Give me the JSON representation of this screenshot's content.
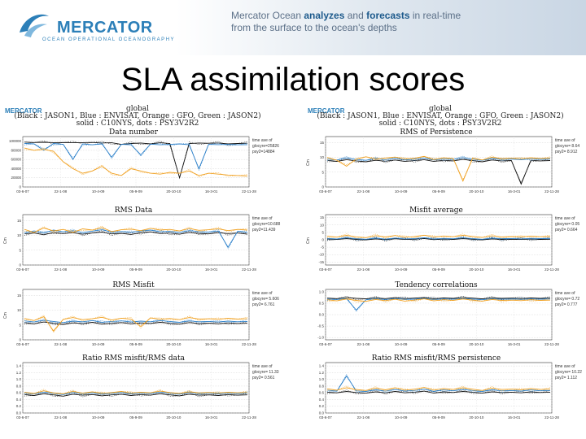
{
  "header": {
    "logo_text": "MERCATOR",
    "logo_subtext": "OCEAN OPERATIONAL OCEANOGRAPHY",
    "tagline_part1": "Mercator Ocean ",
    "tagline_hl1": "analyzes",
    "tagline_and": " and ",
    "tagline_hl2": "forecasts",
    "tagline_part2": " in real-time",
    "tagline_line2": "from the surface to the ocean's depths"
  },
  "slide_title": "SLA assimilation scores",
  "colors": {
    "JASON1": "#111111",
    "ENVISAT": "#2a7fc9",
    "GFO": "#f0a020",
    "JASON2": "#2aa02a",
    "brand": "#2c7fb8"
  },
  "figures": [
    {
      "logo": "MERCATOR",
      "region": "global",
      "legend": "(Black : JASON1, Blue : ENVISAT, Orange : GFO, Green : JASON2)",
      "styles": "solid : C10NYS, dots : PSY3V2R2",
      "panels": [
        {
          "title": "Data number",
          "ylabel": "",
          "stats": [
            "time ave of",
            "glocyre=25826",
            "psy2=14884"
          ]
        },
        {
          "title": "RMS Data",
          "ylabel": "Cm",
          "stats": [
            "time ave of",
            "glocyre=10.688",
            "psy2=11.439"
          ]
        },
        {
          "title": "RMS Misfit",
          "ylabel": "Cm",
          "stats": [
            "time ave of",
            "glocyre= 5.606",
            "psy2= 6.761"
          ]
        },
        {
          "title": "Ratio RMS misfit/RMS data",
          "ylabel": "",
          "stats": [
            "time ave of",
            "glocyre= 11.33",
            "psy2= 0.561"
          ]
        }
      ]
    },
    {
      "logo": "MERCATOR",
      "region": "global",
      "legend": "(Black : JASON1, Blue : ENVISAT, Orange : GFO, Green : JASON2)",
      "styles": "solid : C10NYS, dots : PSY3V2R2",
      "panels": [
        {
          "title": "RMS of Persistence",
          "ylabel": "Cm",
          "stats": [
            "time ave of",
            "glocyre= 8.64",
            "psy2= 8.912"
          ]
        },
        {
          "title": "Misfit average",
          "ylabel": "Cm",
          "stats": [
            "time ave of",
            "glocyre= 0.05",
            "psy2= 0.664"
          ]
        },
        {
          "title": "Tendency correlations",
          "ylabel": "",
          "stats": [
            "time ave of",
            "glocyre= 0.72",
            "psy2= 0.777"
          ]
        },
        {
          "title": "Ratio RMS misfit/RMS persistence",
          "ylabel": "",
          "stats": [
            "time ave of",
            "glocyre= 10.22",
            "psy2= 1.112"
          ]
        }
      ]
    }
  ],
  "chart_data": [
    {
      "type": "line",
      "title": "Data number",
      "x_ticks": [
        "03-6-07",
        "22-1-08",
        "10-4-09",
        "05-9-09",
        "20-10-10",
        "16-3-01",
        "22-11-28"
      ],
      "y_ticks": [
        "100000",
        "80000",
        "60000",
        "40000",
        "20000",
        "0"
      ],
      "ylim": [
        0,
        110000
      ],
      "series": [
        {
          "name": "JASON1",
          "values": [
            98000,
            97000,
            97500,
            96800,
            97000,
            96500,
            96800,
            97200,
            96000,
            96500,
            93000,
            95000,
            96000,
            94000,
            96500,
            95000,
            20000,
            95000,
            96000,
            95500,
            96000,
            94000,
            95000,
            95500
          ]
        },
        {
          "name": "ENVISAT",
          "values": [
            95000,
            94000,
            80000,
            95000,
            93000,
            60000,
            94000,
            92000,
            94000,
            65000,
            93000,
            92000,
            70000,
            93500,
            92000,
            93000,
            94000,
            92000,
            40000,
            93000,
            92500,
            93000,
            92000,
            92500
          ]
        },
        {
          "name": "GFO",
          "values": [
            85000,
            80000,
            82000,
            78000,
            55000,
            40000,
            30000,
            35000,
            45000,
            30000,
            25000,
            40000,
            35000,
            30000,
            28000,
            32000,
            30000,
            35000,
            25000,
            30000,
            28000,
            26000,
            25000,
            24000
          ]
        }
      ]
    },
    {
      "type": "line",
      "title": "RMS Data",
      "x_ticks": [
        "03-6-07",
        "22-1-08",
        "10-4-09",
        "05-9-09",
        "20-10-10",
        "16-3-01",
        "22-11-28"
      ],
      "y_ticks": [
        "15",
        "10",
        "5",
        "0"
      ],
      "ylim": [
        0,
        17
      ],
      "series": [
        {
          "name": "JASON1",
          "values": [
            10.5,
            10.8,
            10.2,
            11.0,
            10.6,
            10.9,
            10.4,
            10.8,
            11.1,
            10.5,
            10.7,
            10.3,
            10.9,
            11.2,
            10.6,
            10.8,
            10.4,
            11.0,
            10.7,
            10.5,
            10.9,
            10.6,
            10.8,
            10.4
          ]
        },
        {
          "name": "ENVISAT",
          "values": [
            11.0,
            11.5,
            10.8,
            11.8,
            11.2,
            11.6,
            11.0,
            11.4,
            11.9,
            11.1,
            11.3,
            11.0,
            11.5,
            11.8,
            11.2,
            11.4,
            11.0,
            11.6,
            11.3,
            11.1,
            11.5,
            6.0,
            11.4,
            11.0
          ]
        },
        {
          "name": "GFO",
          "values": [
            12.0,
            11.0,
            12.5,
            11.5,
            12.0,
            11.0,
            12.2,
            11.8,
            12.6,
            11.3,
            11.9,
            12.1,
            11.6,
            12.4,
            11.8,
            12.0,
            11.5,
            12.3,
            11.7,
            11.9,
            12.2,
            11.6,
            12.0,
            11.8
          ]
        }
      ]
    },
    {
      "type": "line",
      "title": "RMS Misfit",
      "x_ticks": [
        "03-6-07",
        "22-1-08",
        "10-4-09",
        "05-9-09",
        "20-10-10",
        "16-3-01",
        "22-11-28"
      ],
      "y_ticks": [
        "15",
        "10",
        "5",
        "0"
      ],
      "ylim": [
        0,
        17
      ],
      "series": [
        {
          "name": "JASON1",
          "values": [
            5.8,
            5.4,
            6.0,
            5.6,
            5.2,
            5.7,
            5.5,
            5.9,
            5.3,
            5.6,
            5.8,
            5.4,
            5.7,
            5.5,
            5.9,
            5.6,
            5.3,
            5.8,
            5.5,
            5.6,
            5.4,
            5.7,
            5.5,
            5.6
          ]
        },
        {
          "name": "ENVISAT",
          "values": [
            6.4,
            6.0,
            6.6,
            6.2,
            5.8,
            6.3,
            6.1,
            6.5,
            5.9,
            6.2,
            6.4,
            6.0,
            6.3,
            6.1,
            6.5,
            6.2,
            5.9,
            6.4,
            6.1,
            6.2,
            6.0,
            6.3,
            6.1,
            6.2
          ]
        },
        {
          "name": "GFO",
          "values": [
            7.2,
            6.5,
            7.8,
            3.0,
            6.9,
            7.5,
            6.8,
            7.1,
            7.6,
            6.7,
            7.3,
            7.0,
            4.5,
            7.4,
            6.9,
            7.2,
            6.8,
            7.5,
            7.0,
            7.1,
            6.9,
            7.3,
            7.0,
            7.1
          ]
        }
      ]
    },
    {
      "type": "line",
      "title": "Ratio RMS misfit/RMS data",
      "x_ticks": [
        "03-6-07",
        "22-1-08",
        "10-4-09",
        "05-9-09",
        "20-10-10",
        "16-3-01",
        "22-11-28"
      ],
      "y_ticks": [
        "1.4",
        "1.2",
        "1.0",
        "0.8",
        "0.6",
        "0.4",
        "0.2",
        "0.0"
      ],
      "ylim": [
        0,
        1.5
      ],
      "series": [
        {
          "name": "JASON1",
          "values": [
            0.55,
            0.52,
            0.57,
            0.54,
            0.5,
            0.56,
            0.53,
            0.55,
            0.51,
            0.54,
            0.56,
            0.52,
            0.55,
            0.53,
            0.57,
            0.54,
            0.51,
            0.56,
            0.53,
            0.54,
            0.52,
            0.55,
            0.53,
            0.54
          ]
        },
        {
          "name": "ENVISAT",
          "values": [
            0.6,
            0.57,
            0.62,
            0.59,
            0.55,
            0.61,
            0.58,
            0.6,
            0.56,
            0.59,
            0.61,
            0.57,
            0.6,
            0.58,
            0.62,
            0.59,
            0.56,
            0.61,
            0.58,
            0.59,
            0.57,
            0.6,
            0.58,
            0.59
          ]
        },
        {
          "name": "GFO",
          "values": [
            0.62,
            0.58,
            0.66,
            0.6,
            0.57,
            0.64,
            0.59,
            0.63,
            0.58,
            0.61,
            0.64,
            0.59,
            0.62,
            0.6,
            0.65,
            0.61,
            0.58,
            0.63,
            0.6,
            0.61,
            0.59,
            0.62,
            0.6,
            0.61
          ]
        }
      ]
    },
    {
      "type": "line",
      "title": "RMS of Persistence",
      "x_ticks": [
        "03-6-07",
        "22-1-08",
        "10-4-09",
        "05-9-09",
        "20-10-10",
        "16-3-01",
        "22-11-28"
      ],
      "y_ticks": [
        "15",
        "10",
        "5",
        "0"
      ],
      "ylim": [
        0,
        17
      ],
      "series": [
        {
          "name": "JASON1",
          "values": [
            9.0,
            8.6,
            9.2,
            8.8,
            8.5,
            9.0,
            8.7,
            9.1,
            8.6,
            8.9,
            9.2,
            8.6,
            9.0,
            8.8,
            9.3,
            8.9,
            8.5,
            9.1,
            8.8,
            8.9,
            1.0,
            9.0,
            8.8,
            8.9
          ]
        },
        {
          "name": "ENVISAT",
          "values": [
            9.5,
            9.1,
            9.8,
            9.3,
            9.0,
            9.6,
            9.2,
            9.7,
            9.1,
            9.4,
            9.8,
            9.1,
            9.5,
            9.3,
            9.9,
            9.4,
            9.0,
            9.6,
            9.3,
            9.4,
            9.2,
            9.5,
            9.3,
            9.4
          ]
        },
        {
          "name": "GFO",
          "values": [
            10.0,
            9.0,
            7.0,
            9.5,
            10.2,
            9.3,
            9.8,
            10.1,
            9.4,
            9.7,
            10.3,
            9.2,
            9.9,
            9.6,
            2.0,
            9.8,
            9.1,
            10.0,
            9.6,
            9.7,
            9.5,
            9.9,
            9.6,
            9.7
          ]
        }
      ]
    },
    {
      "type": "line",
      "title": "Misfit average",
      "x_ticks": [
        "03-6-07",
        "22-1-08",
        "10-4-09",
        "05-9-09",
        "20-10-10",
        "16-3-01",
        "22-11-28"
      ],
      "y_ticks": [
        "15",
        "10",
        "5",
        "0",
        "-5",
        "-10",
        "-15"
      ],
      "ylim": [
        -17,
        17
      ],
      "series": [
        {
          "name": "JASON1",
          "values": [
            0.5,
            0.2,
            0.8,
            0.3,
            0.0,
            0.6,
            0.1,
            0.7,
            0.2,
            0.4,
            0.9,
            0.1,
            0.5,
            0.3,
            0.8,
            0.4,
            0.0,
            0.6,
            0.3,
            0.4,
            0.2,
            0.5,
            0.3,
            0.4
          ]
        },
        {
          "name": "ENVISAT",
          "values": [
            1.0,
            0.6,
            1.3,
            0.8,
            0.4,
            1.1,
            0.5,
            1.2,
            0.6,
            0.9,
            1.4,
            0.5,
            1.0,
            0.7,
            1.3,
            0.9,
            0.4,
            1.1,
            0.8,
            0.9,
            0.6,
            1.0,
            0.8,
            0.9
          ]
        },
        {
          "name": "GFO",
          "values": [
            2.5,
            1.8,
            3.0,
            2.0,
            1.5,
            2.8,
            1.9,
            2.9,
            1.7,
            2.2,
            3.1,
            1.8,
            2.6,
            2.1,
            3.0,
            2.3,
            1.6,
            2.7,
            2.0,
            2.2,
            1.9,
            2.5,
            2.1,
            2.2
          ]
        }
      ]
    },
    {
      "type": "line",
      "title": "Tendency correlations",
      "x_ticks": [
        "03-6-07",
        "22-1-08",
        "10-4-09",
        "05-9-09",
        "20-10-10",
        "16-3-01",
        "22-11-28"
      ],
      "y_ticks": [
        "1.0",
        "0.5",
        "0.0",
        "-0.5",
        "-1.0"
      ],
      "ylim": [
        -1.1,
        1.1
      ],
      "series": [
        {
          "name": "JASON1",
          "values": [
            0.72,
            0.7,
            0.74,
            0.71,
            0.69,
            0.73,
            0.7,
            0.74,
            0.7,
            0.72,
            0.75,
            0.69,
            0.73,
            0.71,
            0.74,
            0.72,
            0.69,
            0.73,
            0.71,
            0.72,
            0.7,
            0.73,
            0.71,
            0.72
          ]
        },
        {
          "name": "ENVISAT",
          "values": [
            0.68,
            0.66,
            0.7,
            0.2,
            0.65,
            0.69,
            0.66,
            0.7,
            0.66,
            0.68,
            0.71,
            0.65,
            0.69,
            0.67,
            0.7,
            0.68,
            0.65,
            0.69,
            0.67,
            0.68,
            0.66,
            0.69,
            0.67,
            0.68
          ]
        },
        {
          "name": "GFO",
          "values": [
            0.65,
            0.6,
            0.68,
            0.62,
            0.58,
            0.66,
            0.61,
            0.67,
            0.59,
            0.63,
            0.69,
            0.6,
            0.65,
            0.62,
            0.68,
            0.63,
            0.59,
            0.66,
            0.62,
            0.63,
            0.61,
            0.65,
            0.62,
            0.63
          ]
        }
      ]
    },
    {
      "type": "line",
      "title": "Ratio RMS misfit/RMS persistence",
      "x_ticks": [
        "03-6-07",
        "22-1-08",
        "10-4-09",
        "05-9-09",
        "20-10-10",
        "16-3-01",
        "22-11-28"
      ],
      "y_ticks": [
        "1.4",
        "1.2",
        "1.0",
        "0.8",
        "0.6",
        "0.4",
        "0.2",
        "0.0"
      ],
      "ylim": [
        0,
        1.5
      ],
      "series": [
        {
          "name": "JASON1",
          "values": [
            0.62,
            0.6,
            0.64,
            0.61,
            0.59,
            0.63,
            0.6,
            0.64,
            0.6,
            0.62,
            0.65,
            0.59,
            0.63,
            0.61,
            0.64,
            0.62,
            0.59,
            0.63,
            0.61,
            0.62,
            0.6,
            0.63,
            0.61,
            0.62
          ]
        },
        {
          "name": "ENVISAT",
          "values": [
            0.68,
            0.65,
            1.1,
            0.66,
            0.64,
            0.69,
            0.65,
            0.7,
            0.65,
            0.67,
            0.71,
            0.64,
            0.69,
            0.66,
            0.7,
            0.67,
            0.64,
            0.69,
            0.66,
            0.67,
            0.65,
            0.69,
            0.66,
            0.67
          ]
        },
        {
          "name": "GFO",
          "values": [
            0.72,
            0.68,
            0.75,
            0.7,
            0.67,
            0.74,
            0.69,
            0.75,
            0.68,
            0.71,
            0.76,
            0.68,
            0.73,
            0.7,
            0.75,
            0.71,
            0.67,
            0.74,
            0.7,
            0.71,
            0.69,
            0.73,
            0.7,
            0.71
          ]
        }
      ]
    }
  ]
}
